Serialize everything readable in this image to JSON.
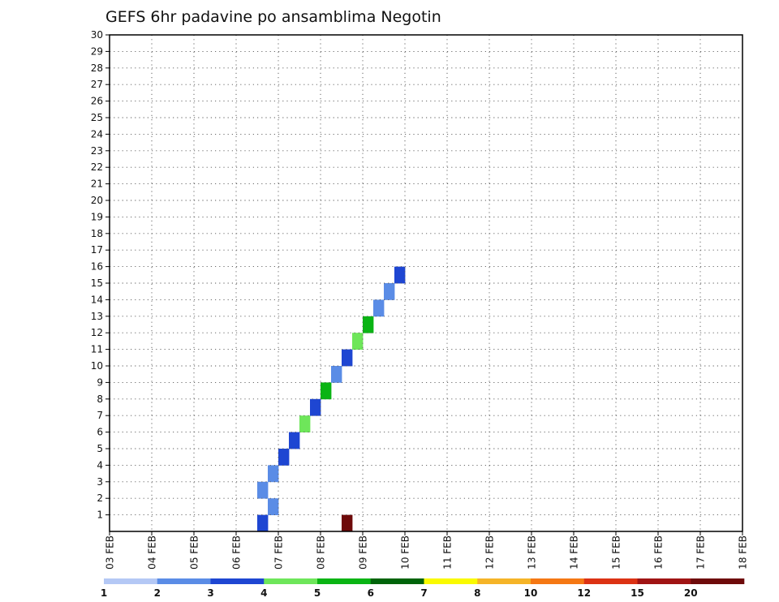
{
  "chart_data": {
    "type": "heatmap",
    "title": "GEFS 6hr padavine po ansamblima Negotin",
    "xlabel": "",
    "ylabel": "",
    "x_time_range": [
      "03 FEB 00Z",
      "18 FEB 00Z"
    ],
    "x_ticks": [
      "03 FEB",
      "04 FEB",
      "05 FEB",
      "06 FEB",
      "07 FEB",
      "08 FEB",
      "09 FEB",
      "10 FEB",
      "11 FEB",
      "12 FEB",
      "13 FEB",
      "14 FEB",
      "15 FEB",
      "16 FEB",
      "17 FEB",
      "18 FEB"
    ],
    "y_ticks": [
      1,
      2,
      3,
      4,
      5,
      6,
      7,
      8,
      9,
      10,
      11,
      12,
      13,
      14,
      15,
      16,
      17,
      18,
      19,
      20,
      21,
      22,
      23,
      24,
      25,
      26,
      27,
      28,
      29,
      30
    ],
    "ylim": [
      0,
      30
    ],
    "grid": true,
    "legend_position": "bottom",
    "colorbar": {
      "labels": [
        "1",
        "2",
        "3",
        "4",
        "5",
        "6",
        "7",
        "8",
        "10",
        "12",
        "15",
        "20"
      ],
      "colors": [
        "#b4c8f5",
        "#5a8ce6",
        "#1e46d2",
        "#6ee65a",
        "#0ab414",
        "#00640a",
        "#fafa00",
        "#f5b428",
        "#f57814",
        "#dc3214",
        "#a01414",
        "#6e0a0a"
      ]
    },
    "cells": [
      {
        "t": "06 FEB 12Z",
        "member": 0,
        "bin": 2
      },
      {
        "t": "08 FEB 12Z",
        "member": 0,
        "bin": 11
      },
      {
        "t": "06 FEB 18Z",
        "member": 1,
        "bin": 1
      },
      {
        "t": "06 FEB 12Z",
        "member": 2,
        "bin": 1
      },
      {
        "t": "06 FEB 18Z",
        "member": 3,
        "bin": 1
      },
      {
        "t": "07 FEB 00Z",
        "member": 4,
        "bin": 2
      },
      {
        "t": "07 FEB 06Z",
        "member": 5,
        "bin": 2
      },
      {
        "t": "07 FEB 12Z",
        "member": 6,
        "bin": 3
      },
      {
        "t": "07 FEB 18Z",
        "member": 7,
        "bin": 2
      },
      {
        "t": "08 FEB 00Z",
        "member": 8,
        "bin": 4
      },
      {
        "t": "08 FEB 06Z",
        "member": 9,
        "bin": 1
      },
      {
        "t": "08 FEB 12Z",
        "member": 10,
        "bin": 2
      },
      {
        "t": "08 FEB 18Z",
        "member": 11,
        "bin": 3
      },
      {
        "t": "09 FEB 00Z",
        "member": 12,
        "bin": 4
      },
      {
        "t": "09 FEB 06Z",
        "member": 13,
        "bin": 1
      },
      {
        "t": "09 FEB 12Z",
        "member": 14,
        "bin": 1
      },
      {
        "t": "09 FEB 18Z",
        "member": 15,
        "bin": 2
      }
    ]
  }
}
